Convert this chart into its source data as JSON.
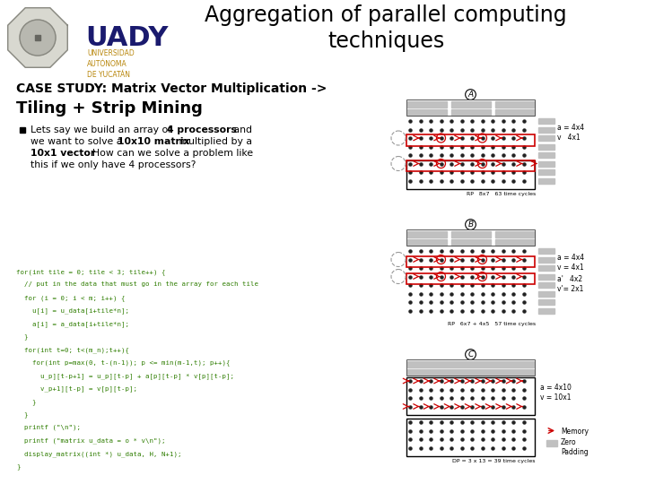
{
  "title": "Aggregation of parallel computing\ntechniques",
  "case_study": "CASE STUDY: Matrix Vector Multiplication ->",
  "subtitle": "Tiling + Strip Mining",
  "bg_color": "#ffffff",
  "title_color": "#000000",
  "case_color": "#000000",
  "subtitle_color": "#000000",
  "code_color": "#2e7d00",
  "uady_text_color": "#1a1a6e",
  "uady_sub_color": "#b8860b",
  "diag_A_label": "A",
  "diag_B_label": "B",
  "diag_C_label": "C",
  "diag_A_text1": "a = 4x4",
  "diag_A_text2": "v   4x1",
  "diag_A_footer": "RP   8x7   63 time cycles",
  "diag_B_text1": "a = 4x4",
  "diag_B_text2": "v = 4x1",
  "diag_B_text3": "a'   4x2",
  "diag_B_text4": "v'= 2x1",
  "diag_B_footer": "RP   6x7 + 4x5   57 time cycles",
  "diag_C_text1": "a = 4x10",
  "diag_C_text2": "v = 10x1",
  "diag_C_footer": "DP = 3 x 13 = 39 time cycles",
  "legend_mem": "Memory",
  "legend_zero": "Zero\nPadding",
  "code_line1": "for(int tile = 0; tile < 3; tile++) {",
  "code_line2": "  // put in the data that must go in the array for each tile",
  "code_line3": "  for (i = 0; i < m; i++) {",
  "code_line4": "    u[i] = u_data[i+tile*n];",
  "code_line5": "    a[i] = a_data[i+tile*n];",
  "code_line6": "  }",
  "code_line7": "  for(int t=0; t<(m_n);t++){",
  "code_line8": "    for(int p=max(0, t-(n-1)); p <= min(m-1,t); p++){",
  "code_line9": "      u_p][t-p+1] = u_p][t-p] + a[p][t-p] * v[p][t-p];",
  "code_line10": "      v_p+1][t-p] = v[p][t-p];",
  "code_line11": "    }",
  "code_line12": "  }",
  "code_line13": "  printf (\"\\n\");",
  "code_line14": "  printf (\"matrix u_data = o * v\\n\");",
  "code_line15": "  display_matrix((int *) u_data, H, N+1);",
  "code_line16": "}"
}
